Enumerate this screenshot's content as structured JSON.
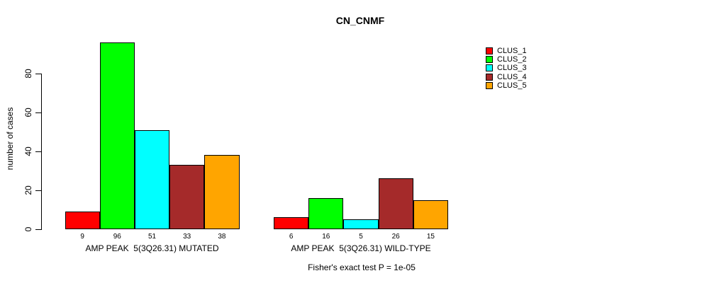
{
  "title": "CN_CNMF",
  "chart_data": {
    "type": "bar",
    "title": "CN_CNMF",
    "ylabel": "number of cases",
    "xlabel": "",
    "yticks": [
      0,
      20,
      40,
      60,
      80
    ],
    "ylim": [
      0,
      96
    ],
    "grid": false,
    "legend_position": "right",
    "categories": [
      "AMP PEAK  5(3Q26.31) MUTATED",
      "AMP PEAK  5(3Q26.31) WILD-TYPE"
    ],
    "series": [
      {
        "name": "CLUS_1",
        "color": "#FF0000",
        "values": [
          9,
          6
        ]
      },
      {
        "name": "CLUS_2",
        "color": "#00FF00",
        "values": [
          96,
          16
        ]
      },
      {
        "name": "CLUS_3",
        "color": "#00FFFF",
        "values": [
          51,
          5
        ]
      },
      {
        "name": "CLUS_4",
        "color": "#A52A2A",
        "values": [
          33,
          26
        ]
      },
      {
        "name": "CLUS_5",
        "color": "#FFA500",
        "values": [
          38,
          15
        ]
      }
    ],
    "bar_value_labels": true,
    "footnote": "Fisher's exact test P = 1e-05"
  }
}
